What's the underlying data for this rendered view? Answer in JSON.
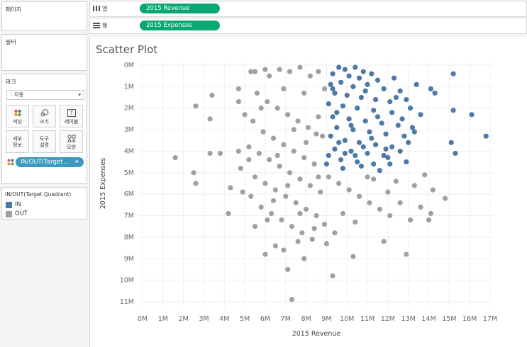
{
  "panels": {
    "pages_title": "페이지",
    "filters_title": "필터",
    "marks_title": "마크",
    "marks_type": "자동",
    "buttons": [
      {
        "label": "색상",
        "icon": "color-icon"
      },
      {
        "label": "크기",
        "icon": "size-icon"
      },
      {
        "label": "레이블",
        "icon": "label-icon"
      },
      {
        "label": "세부\n정보",
        "icon": "detail-icon"
      },
      {
        "label": "도구\n설명",
        "icon": "tooltip-icon"
      },
      {
        "label": "모양",
        "icon": "shape-icon"
      }
    ],
    "color_field": "IN/OUT(Target ..",
    "legend_title": "IN/OUT(Target Quadrant)",
    "legend_items": [
      {
        "label": "IN",
        "color": "#4e79a7"
      },
      {
        "label": "OUT",
        "color": "#a0a0a0"
      }
    ]
  },
  "shelves": {
    "columns_label": "열",
    "columns_field": "2015 Revenue",
    "rows_label": "행",
    "rows_field": "2015 Expenses"
  },
  "chart_title": "Scatter Plot",
  "chart_data": {
    "type": "scatter",
    "xlabel": "2015 Revenue",
    "ylabel": "2015 Expenses",
    "xlim": [
      0,
      17
    ],
    "ylim": [
      0,
      11
    ],
    "y_reversed": true,
    "x_ticks": [
      "0M",
      "1M",
      "2M",
      "3M",
      "4M",
      "5M",
      "6M",
      "7M",
      "8M",
      "9M",
      "10M",
      "11M",
      "12M",
      "13M",
      "14M",
      "15M",
      "16M",
      "17M"
    ],
    "y_ticks": [
      "0M",
      "1M",
      "2M",
      "3M",
      "4M",
      "5M",
      "6M",
      "7M",
      "8M",
      "9M",
      "10M",
      "11M"
    ],
    "split_x": 8.9,
    "split_y": 5.0,
    "colors": {
      "IN": "#4e79a7",
      "OUT": "#a0a0a0"
    },
    "series": [
      {
        "name": "IN",
        "points": [
          [
            9.6,
            0.1
          ],
          [
            9.9,
            0.2
          ],
          [
            10.4,
            0.1
          ],
          [
            10.8,
            0.3
          ],
          [
            11.2,
            0.4
          ],
          [
            9.3,
            0.4
          ],
          [
            10.1,
            0.5
          ],
          [
            10.6,
            0.6
          ],
          [
            11.5,
            0.7
          ],
          [
            12.3,
            0.6
          ],
          [
            9.2,
            0.9
          ],
          [
            9.7,
            0.8
          ],
          [
            10.3,
            1.0
          ],
          [
            11.0,
            0.9
          ],
          [
            11.8,
            1.1
          ],
          [
            12.6,
            1.2
          ],
          [
            13.4,
            0.9
          ],
          [
            15.2,
            0.4
          ],
          [
            14.1,
            1.1
          ],
          [
            14.3,
            1.3
          ],
          [
            9.4,
            1.3
          ],
          [
            10.0,
            1.4
          ],
          [
            10.7,
            1.5
          ],
          [
            11.4,
            1.6
          ],
          [
            12.1,
            1.7
          ],
          [
            12.9,
            1.6
          ],
          [
            9.1,
            1.8
          ],
          [
            9.8,
            1.9
          ],
          [
            10.5,
            2.0
          ],
          [
            11.3,
            2.1
          ],
          [
            12.2,
            2.2
          ],
          [
            13.1,
            2.0
          ],
          [
            13.6,
            2.3
          ],
          [
            15.2,
            2.1
          ],
          [
            16.1,
            2.3
          ],
          [
            9.3,
            2.4
          ],
          [
            10.1,
            2.5
          ],
          [
            10.9,
            2.6
          ],
          [
            11.7,
            2.7
          ],
          [
            12.5,
            2.8
          ],
          [
            13.2,
            2.9
          ],
          [
            9.5,
            2.9
          ],
          [
            10.3,
            3.0
          ],
          [
            11.1,
            3.1
          ],
          [
            11.9,
            3.2
          ],
          [
            12.8,
            3.3
          ],
          [
            16.8,
            3.3
          ],
          [
            9.2,
            3.3
          ],
          [
            9.9,
            3.5
          ],
          [
            10.6,
            3.6
          ],
          [
            11.4,
            3.7
          ],
          [
            12.2,
            3.8
          ],
          [
            13.0,
            3.6
          ],
          [
            15.1,
            3.6
          ],
          [
            9.4,
            3.9
          ],
          [
            10.2,
            4.0
          ],
          [
            11.0,
            4.1
          ],
          [
            11.8,
            4.2
          ],
          [
            12.6,
            4.0
          ],
          [
            15.3,
            4.1
          ],
          [
            9.1,
            4.2
          ],
          [
            9.7,
            4.4
          ],
          [
            10.5,
            4.5
          ],
          [
            11.3,
            4.6
          ],
          [
            12.0,
            4.3
          ],
          [
            9.0,
            4.6
          ],
          [
            9.8,
            4.8
          ],
          [
            10.7,
            4.7
          ],
          [
            11.6,
            4.9
          ],
          [
            9.3,
            1.1
          ],
          [
            10.9,
            1.2
          ],
          [
            12.4,
            1.5
          ],
          [
            11.5,
            2.4
          ],
          [
            10.2,
            2.8
          ],
          [
            12.7,
            2.5
          ],
          [
            9.6,
            3.6
          ],
          [
            11.2,
            3.4
          ],
          [
            12.9,
            4.5
          ],
          [
            10.4,
            4.2
          ],
          [
            9.5,
            2.2
          ],
          [
            11.9,
            3.9
          ],
          [
            10.8,
            3.8
          ],
          [
            9.9,
            4.1
          ],
          [
            13.3,
            3.1
          ],
          [
            12.1,
            4.6
          ]
        ]
      },
      {
        "name": "OUT",
        "points": [
          [
            1.6,
            4.3
          ],
          [
            2.6,
            1.9
          ],
          [
            3.4,
            1.4
          ],
          [
            3.3,
            2.5
          ],
          [
            3.3,
            4.1
          ],
          [
            3.8,
            4.1
          ],
          [
            2.5,
            5.0
          ],
          [
            2.6,
            5.5
          ],
          [
            4.2,
            6.9
          ],
          [
            4.3,
            5.7
          ],
          [
            4.7,
            1.1
          ],
          [
            4.7,
            1.7
          ],
          [
            5.0,
            2.3
          ],
          [
            4.7,
            4.0
          ],
          [
            4.8,
            4.8
          ],
          [
            5.3,
            0.3
          ],
          [
            5.5,
            0.3
          ],
          [
            6.0,
            0.2
          ],
          [
            6.7,
            0.2
          ],
          [
            7.2,
            0.3
          ],
          [
            7.7,
            0.1
          ],
          [
            8.2,
            0.5
          ],
          [
            8.6,
            0.3
          ],
          [
            8.9,
            1.1
          ],
          [
            8.6,
            2.4
          ],
          [
            8.8,
            3.3
          ],
          [
            5.6,
            1.3
          ],
          [
            6.1,
            1.7
          ],
          [
            6.6,
            2.0
          ],
          [
            7.1,
            2.3
          ],
          [
            7.6,
            2.6
          ],
          [
            8.1,
            2.9
          ],
          [
            8.5,
            3.2
          ],
          [
            5.4,
            2.6
          ],
          [
            5.9,
            3.1
          ],
          [
            6.4,
            3.4
          ],
          [
            6.9,
            3.7
          ],
          [
            7.4,
            4.0
          ],
          [
            7.9,
            4.3
          ],
          [
            8.4,
            4.6
          ],
          [
            5.2,
            3.8
          ],
          [
            5.7,
            4.1
          ],
          [
            6.2,
            4.4
          ],
          [
            6.7,
            4.7
          ],
          [
            7.2,
            5.0
          ],
          [
            7.7,
            5.3
          ],
          [
            8.2,
            5.6
          ],
          [
            8.7,
            5.9
          ],
          [
            5.5,
            5.2
          ],
          [
            6.0,
            5.5
          ],
          [
            6.5,
            5.8
          ],
          [
            7.0,
            6.1
          ],
          [
            7.5,
            6.4
          ],
          [
            8.0,
            6.7
          ],
          [
            8.5,
            7.0
          ],
          [
            5.8,
            6.6
          ],
          [
            6.3,
            6.9
          ],
          [
            6.8,
            7.2
          ],
          [
            7.3,
            7.5
          ],
          [
            7.8,
            7.8
          ],
          [
            8.3,
            8.1
          ],
          [
            6.0,
            8.8
          ],
          [
            6.5,
            8.4
          ],
          [
            7.1,
            9.5
          ],
          [
            7.6,
            8.2
          ],
          [
            7.3,
            10.9
          ],
          [
            9.3,
            9.8
          ],
          [
            9.1,
            5.2
          ],
          [
            9.6,
            5.5
          ],
          [
            10.1,
            5.8
          ],
          [
            10.6,
            6.1
          ],
          [
            11.1,
            6.4
          ],
          [
            11.6,
            6.7
          ],
          [
            12.1,
            7.0
          ],
          [
            12.6,
            6.4
          ],
          [
            13.1,
            7.2
          ],
          [
            13.6,
            6.6
          ],
          [
            14.1,
            6.9
          ],
          [
            14.8,
            6.2
          ],
          [
            14.0,
            7.2
          ],
          [
            13.3,
            5.6
          ],
          [
            13.8,
            5.1
          ],
          [
            14.2,
            5.8
          ],
          [
            11.3,
            5.3
          ],
          [
            12.0,
            5.9
          ],
          [
            9.8,
            6.9
          ],
          [
            10.4,
            7.3
          ],
          [
            11.8,
            8.2
          ],
          [
            12.9,
            8.8
          ],
          [
            10.3,
            8.9
          ],
          [
            9.4,
            7.8
          ],
          [
            8.9,
            7.4
          ],
          [
            11.0,
            5.2
          ],
          [
            12.4,
            5.4
          ],
          [
            6.9,
            1.1
          ],
          [
            7.9,
            1.3
          ],
          [
            6.2,
            0.5
          ],
          [
            5.8,
            2.0
          ],
          [
            7.4,
            3.0
          ],
          [
            8.0,
            3.6
          ],
          [
            6.6,
            4.2
          ],
          [
            7.1,
            5.6
          ],
          [
            8.6,
            5.2
          ],
          [
            6.4,
            6.3
          ],
          [
            7.7,
            6.9
          ],
          [
            8.4,
            7.6
          ],
          [
            9.0,
            8.3
          ],
          [
            6.9,
            8.6
          ],
          [
            7.9,
            9.0
          ],
          [
            5.5,
            7.5
          ],
          [
            6.1,
            7.2
          ],
          [
            5.2,
            4.4
          ],
          [
            4.9,
            5.9
          ],
          [
            5.3,
            6.1
          ]
        ]
      }
    ]
  }
}
